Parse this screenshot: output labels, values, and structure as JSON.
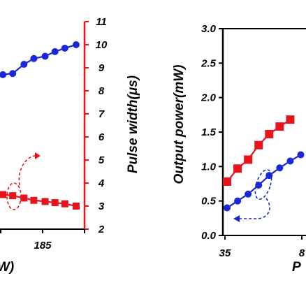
{
  "chart_data": [
    {
      "type": "line",
      "x": {
        "ticks": [
          "185"
        ]
      },
      "xlabel": "W)",
      "y_right": {
        "label": "Pulse width(μs)",
        "range": [
          2,
          11
        ],
        "ticks": [
          "2",
          "3",
          "4",
          "5",
          "6",
          "7",
          "8",
          "9",
          "10",
          "11"
        ],
        "color": "#e8141b"
      },
      "series": [
        {
          "axis": "y_left",
          "color": "#1a27d6",
          "marker": "circle",
          "points": [
            [
              145,
              8.7
            ],
            [
              152,
              8.75
            ],
            [
              160,
              9.15
            ],
            [
              167,
              9.4
            ],
            [
              175,
              9.5
            ],
            [
              182,
              9.7
            ],
            [
              189,
              9.85
            ],
            [
              197,
              10.0
            ]
          ]
        },
        {
          "axis": "y_right",
          "color": "#e8141b",
          "marker": "square",
          "points": [
            [
              145,
              3.5
            ],
            [
              152,
              3.45
            ],
            [
              160,
              3.35
            ],
            [
              167,
              3.25
            ],
            [
              175,
              3.2
            ],
            [
              182,
              3.15
            ],
            [
              189,
              3.1
            ],
            [
              197,
              3.0
            ]
          ]
        }
      ],
      "annotations": [
        {
          "type": "dashed-ellipse-arrow",
          "color": "#e8141b",
          "direction": "right"
        }
      ]
    },
    {
      "type": "line",
      "x": {
        "ticks": [
          "35",
          "8"
        ]
      },
      "xlabel": "P",
      "y_left": {
        "label": "Output power(mW)",
        "range": [
          0.0,
          3.0
        ],
        "ticks": [
          "0.0",
          "0.5",
          "1.0",
          "1.5",
          "2.0",
          "2.5",
          "3.0"
        ],
        "color": "#000000"
      },
      "series": [
        {
          "axis": "y_left",
          "color": "#e8141b",
          "marker": "square",
          "points": [
            [
              35,
              0.78
            ],
            [
              38.8,
              0.97
            ],
            [
              42.6,
              1.1
            ],
            [
              46.4,
              1.31
            ],
            [
              50.2,
              1.47
            ],
            [
              54,
              1.58
            ],
            [
              57.8,
              1.68
            ]
          ]
        },
        {
          "axis": "y_left",
          "color": "#1a27d6",
          "marker": "circle",
          "points": [
            [
              35,
              0.4
            ],
            [
              38.8,
              0.5
            ],
            [
              42.6,
              0.6
            ],
            [
              46.4,
              0.73
            ],
            [
              50.2,
              0.87
            ],
            [
              54,
              0.98
            ],
            [
              57.8,
              1.08
            ],
            [
              61.6,
              1.17
            ]
          ]
        }
      ],
      "annotations": [
        {
          "type": "dashed-ellipse-arrow",
          "color": "#1a27d6",
          "direction": "left"
        }
      ]
    }
  ]
}
